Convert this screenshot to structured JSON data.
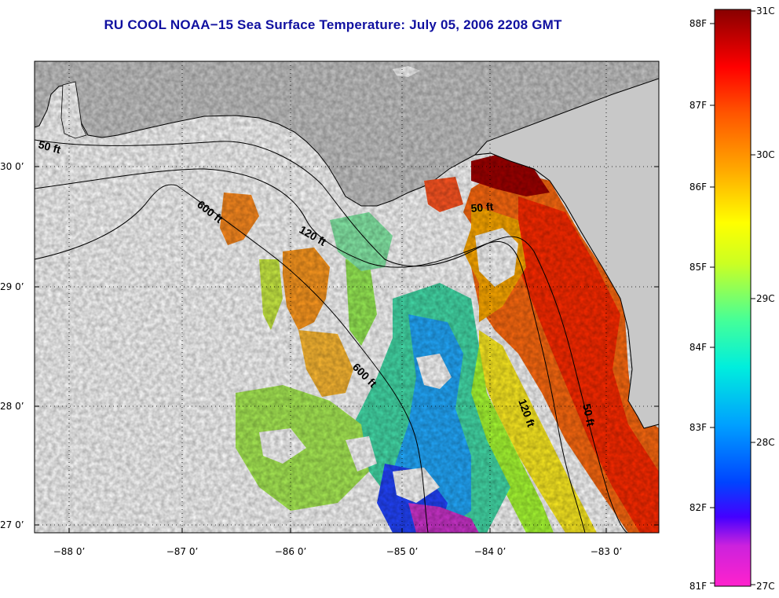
{
  "title": "RU COOL  NOAA−15  Sea Surface Temperature:  July 05, 2006 2208 GMT",
  "map": {
    "lon_ticks": [
      "−88 0’",
      "−87 0’",
      "−86 0’",
      "−85 0’",
      "−84 0’",
      "−83 0’"
    ],
    "lat_ticks": [
      "30 0’",
      "29 0’",
      "28 0’",
      "27 0’"
    ],
    "contour_labels": [
      "50 ft",
      "600 ft",
      "120 ft",
      "50 ft",
      "600 ft",
      "120 ft",
      "50 ft"
    ],
    "colors": {
      "land": "#c8c8c8",
      "water_nodata": "#ffffff",
      "grid": "#000000"
    }
  },
  "colorbar": {
    "f_labels": [
      "88F",
      "87F",
      "86F",
      "85F",
      "84F",
      "83F",
      "82F",
      "81F"
    ],
    "c_labels": [
      "31C",
      "30C",
      "29C",
      "28C",
      "27C"
    ]
  }
}
